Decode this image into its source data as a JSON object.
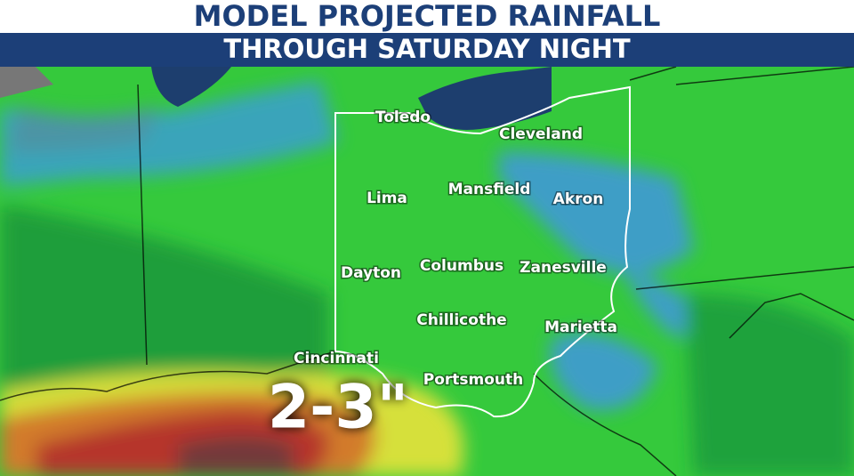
{
  "header": {
    "title": "MODEL PROJECTED RAINFALL",
    "subtitle": "THROUGH SATURDAY NIGHT"
  },
  "cities": [
    {
      "label": "Toledo"
    },
    {
      "label": "Cleveland"
    },
    {
      "label": "Lima"
    },
    {
      "label": "Mansfield"
    },
    {
      "label": "Akron"
    },
    {
      "label": "Dayton"
    },
    {
      "label": "Columbus"
    },
    {
      "label": "Zanesville"
    },
    {
      "label": "Chillicothe"
    },
    {
      "label": "Marietta"
    },
    {
      "label": "Cincinnati"
    },
    {
      "label": "Portsmouth"
    }
  ],
  "annotation": "2-3\""
}
